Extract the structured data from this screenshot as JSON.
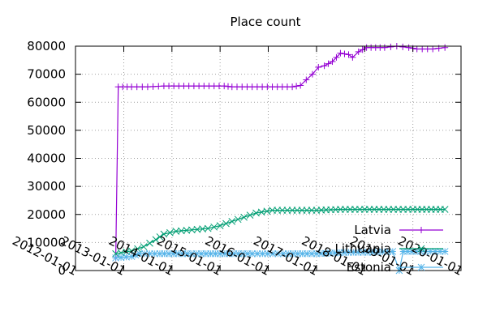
{
  "chart_data": {
    "type": "line",
    "title": "Place count",
    "xlabel": "",
    "ylabel": "",
    "ylim": [
      0,
      80000
    ],
    "xlim": [
      "2012-01-01",
      "2020-01-01"
    ],
    "grid": true,
    "legend_position": "bottom-right",
    "y_ticks": [
      "0",
      "10000",
      "20000",
      "30000",
      "40000",
      "50000",
      "60000",
      "70000",
      "80000"
    ],
    "x_ticks": [
      "2012-01-01",
      "2013-01-01",
      "2014-01-01",
      "2015-01-01",
      "2016-01-01",
      "2017-01-01",
      "2018-01-01",
      "2019-01-01",
      "2020-01-01"
    ],
    "series": [
      {
        "name": "Latvia",
        "color": "#9400d3",
        "marker": "plus",
        "points": [
          [
            "2012-11-01",
            4500
          ],
          [
            "2012-11-20",
            65500
          ],
          [
            "2013-03-01",
            65500
          ],
          [
            "2013-07-01",
            65500
          ],
          [
            "2013-11-01",
            65800
          ],
          [
            "2014-04-01",
            65800
          ],
          [
            "2014-09-01",
            65800
          ],
          [
            "2015-02-01",
            65800
          ],
          [
            "2015-04-01",
            65500
          ],
          [
            "2015-09-01",
            65500
          ],
          [
            "2016-02-01",
            65500
          ],
          [
            "2016-07-01",
            65500
          ],
          [
            "2016-09-01",
            66000
          ],
          [
            "2016-10-15",
            68000
          ],
          [
            "2016-12-01",
            70000
          ],
          [
            "2017-01-15",
            72500
          ],
          [
            "2017-03-01",
            73000
          ],
          [
            "2017-05-01",
            74500
          ],
          [
            "2017-07-01",
            77500
          ],
          [
            "2017-09-01",
            77000
          ],
          [
            "2017-10-01",
            76000
          ],
          [
            "2017-11-15",
            78000
          ],
          [
            "2018-01-15",
            79500
          ],
          [
            "2018-06-01",
            79500
          ],
          [
            "2018-09-01",
            80000
          ],
          [
            "2018-12-01",
            79500
          ],
          [
            "2019-02-01",
            79000
          ],
          [
            "2019-06-01",
            79000
          ],
          [
            "2019-09-01",
            79500
          ]
        ]
      },
      {
        "name": "Lithuania",
        "color": "#009e73",
        "marker": "cross",
        "points": [
          [
            "2012-11-01",
            6000
          ],
          [
            "2013-03-01",
            7000
          ],
          [
            "2013-06-01",
            8500
          ],
          [
            "2013-09-01",
            11000
          ],
          [
            "2013-11-01",
            13000
          ],
          [
            "2014-02-01",
            14000
          ],
          [
            "2014-06-01",
            14500
          ],
          [
            "2014-10-01",
            15000
          ],
          [
            "2015-01-01",
            16000
          ],
          [
            "2015-04-01",
            17500
          ],
          [
            "2015-07-01",
            19000
          ],
          [
            "2015-10-01",
            20500
          ],
          [
            "2016-02-01",
            21500
          ],
          [
            "2016-07-01",
            21500
          ],
          [
            "2017-01-01",
            21500
          ],
          [
            "2017-07-01",
            21800
          ],
          [
            "2018-01-01",
            21800
          ],
          [
            "2018-07-01",
            21800
          ],
          [
            "2019-01-01",
            21800
          ],
          [
            "2019-09-01",
            21800
          ]
        ]
      },
      {
        "name": "Estonia",
        "color": "#56b4e9",
        "marker": "star",
        "points": [
          [
            "2012-11-01",
            4500
          ],
          [
            "2013-03-01",
            5000
          ],
          [
            "2013-05-01",
            6000
          ],
          [
            "2013-10-01",
            6000
          ],
          [
            "2014-06-01",
            6000
          ],
          [
            "2015-01-01",
            6000
          ],
          [
            "2015-09-01",
            6000
          ],
          [
            "2016-06-01",
            6000
          ],
          [
            "2017-01-01",
            6000
          ],
          [
            "2017-09-01",
            6500
          ],
          [
            "2018-03-01",
            6500
          ],
          [
            "2018-08-01",
            6800
          ],
          [
            "2018-09-20",
            0
          ],
          [
            "2018-10-20",
            6800
          ],
          [
            "2019-03-01",
            6800
          ],
          [
            "2019-09-01",
            6800
          ]
        ]
      }
    ]
  }
}
